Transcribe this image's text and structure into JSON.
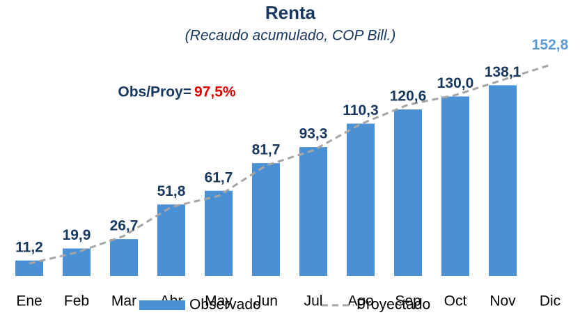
{
  "chart_data": {
    "type": "bar",
    "title": "Renta",
    "subtitle": "(Recaudo acumulado, COP Bill.)",
    "annotation": {
      "text": "Obs/Proy=",
      "value_label": "97,5%"
    },
    "categories": [
      "Ene",
      "Feb",
      "Mar",
      "Abr",
      "May",
      "Jun",
      "Jul",
      "Ago",
      "Sep",
      "Oct",
      "Nov",
      "Dic"
    ],
    "ylim": [
      0,
      160
    ],
    "legend": "bottom",
    "series": [
      {
        "name": "Observado",
        "type": "bar",
        "color": "#4a90d4",
        "values": [
          11.2,
          19.9,
          26.7,
          51.8,
          61.7,
          81.7,
          93.3,
          110.3,
          120.6,
          130.0,
          138.1,
          null
        ],
        "value_labels": [
          "11,2",
          "19,9",
          "26,7",
          "51,8",
          "61,7",
          "81,7",
          "93,3",
          "110,3",
          "120,6",
          "130,0",
          "138,1",
          null
        ]
      },
      {
        "name": "Proyectado",
        "type": "line",
        "color": "#a6a6a6",
        "dashed": true,
        "label_color": "#5b9bd5",
        "values": [
          9,
          17,
          29,
          50,
          58,
          80,
          91,
          110,
          124,
          131,
          142,
          152.8
        ],
        "value_labels": [
          null,
          null,
          null,
          null,
          null,
          null,
          null,
          null,
          null,
          null,
          null,
          "152,8"
        ]
      }
    ]
  }
}
